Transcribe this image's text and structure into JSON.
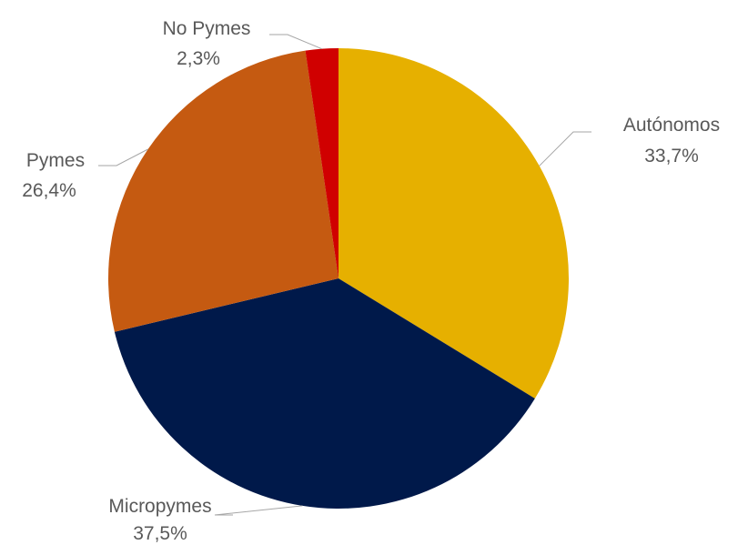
{
  "chart_data": {
    "type": "pie",
    "title": "",
    "slices": [
      {
        "label": "Autónomos",
        "value": 33.7,
        "value_label": "33,7%",
        "color": "#E6B000"
      },
      {
        "label": "Micropymes",
        "value": 37.5,
        "value_label": "37,5%",
        "color": "#00194A"
      },
      {
        "label": "Pymes",
        "value": 26.4,
        "value_label": "26,4%",
        "color": "#C55A11"
      },
      {
        "label": "No Pymes",
        "value": 2.3,
        "value_label": "2,3%",
        "color": "#D00000"
      }
    ],
    "start_angle": "12 o'clock",
    "direction": "clockwise",
    "legend": "none",
    "labels": "outside with leader lines"
  }
}
